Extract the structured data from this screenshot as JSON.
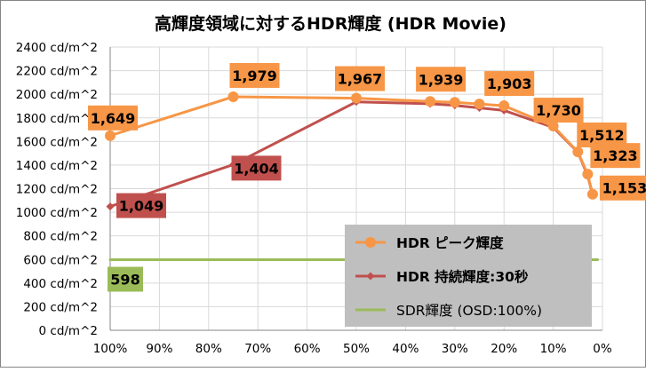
{
  "chart_data": {
    "type": "line",
    "title": "高輝度領域に対するHDR輝度 (HDR Movie)",
    "xlabel": "",
    "ylabel": "",
    "x_axis": {
      "reversed": true,
      "range": [
        100,
        0
      ],
      "tick_values": [
        100,
        90,
        80,
        70,
        60,
        50,
        40,
        30,
        20,
        10,
        0
      ],
      "tick_labels": [
        "100%",
        "90%",
        "80%",
        "70%",
        "60%",
        "50%",
        "40%",
        "30%",
        "20%",
        "10%",
        "0%"
      ]
    },
    "y_axis": {
      "range": [
        0,
        2400
      ],
      "tick_values": [
        0,
        200,
        400,
        600,
        800,
        1000,
        1200,
        1400,
        1600,
        1800,
        2000,
        2200,
        2400
      ],
      "tick_labels": [
        "0 cd/m^2",
        "200 cd/m^2",
        "400 cd/m^2",
        "600 cd/m^2",
        "800 cd/m^2",
        "1000 cd/m^2",
        "1200 cd/m^2",
        "1400 cd/m^2",
        "1600 cd/m^2",
        "1800 cd/m^2",
        "2000 cd/m^2",
        "2200 cd/m^2",
        "2400 cd/m^2"
      ]
    },
    "grid": true,
    "legend_position": "bottom-right",
    "series": [
      {
        "name": "HDR ピーク輝度",
        "color": "#F79646",
        "marker": "circle",
        "points": [
          {
            "x": 100,
            "y": 1649
          },
          {
            "x": 75,
            "y": 1979
          },
          {
            "x": 50,
            "y": 1967
          },
          {
            "x": 35,
            "y": 1939
          },
          {
            "x": 30,
            "y": 1932
          },
          {
            "x": 25,
            "y": 1918
          },
          {
            "x": 20,
            "y": 1903
          },
          {
            "x": 10,
            "y": 1730
          },
          {
            "x": 5,
            "y": 1512
          },
          {
            "x": 3,
            "y": 1323
          },
          {
            "x": 2,
            "y": 1153
          }
        ],
        "data_labels": [
          {
            "point": 0,
            "text": "1,649"
          },
          {
            "point": 1,
            "text": "1,979"
          },
          {
            "point": 2,
            "text": "1,967"
          },
          {
            "point": 3,
            "text": "1,939"
          },
          {
            "point": 6,
            "text": "1,903"
          },
          {
            "point": 7,
            "text": "1,730"
          },
          {
            "point": 8,
            "text": "1,512"
          },
          {
            "point": 9,
            "text": "1,323"
          },
          {
            "point": 10,
            "text": "1,153"
          }
        ]
      },
      {
        "name": "HDR 持続輝度:30秒",
        "color": "#C0504D",
        "marker": "diamond",
        "points": [
          {
            "x": 100,
            "y": 1049
          },
          {
            "x": 75,
            "y": 1404
          },
          {
            "x": 50,
            "y": 1936
          },
          {
            "x": 35,
            "y": 1919
          },
          {
            "x": 30,
            "y": 1906
          },
          {
            "x": 25,
            "y": 1885
          },
          {
            "x": 20,
            "y": 1863
          },
          {
            "x": 10,
            "y": 1719
          },
          {
            "x": 5,
            "y": 1510
          },
          {
            "x": 3,
            "y": 1310
          },
          {
            "x": 2,
            "y": 1150
          }
        ],
        "data_labels": [
          {
            "point": 0,
            "text": "1,049"
          },
          {
            "point": 1,
            "text": "1,404"
          }
        ]
      },
      {
        "name": "SDR輝度 (OSD:100%)",
        "color": "#9BBB59",
        "marker": "none",
        "points": [
          {
            "x": 100,
            "y": 598
          },
          {
            "x": 1,
            "y": 598
          }
        ],
        "data_labels": [
          {
            "point": 0,
            "text": "598"
          }
        ]
      }
    ]
  }
}
